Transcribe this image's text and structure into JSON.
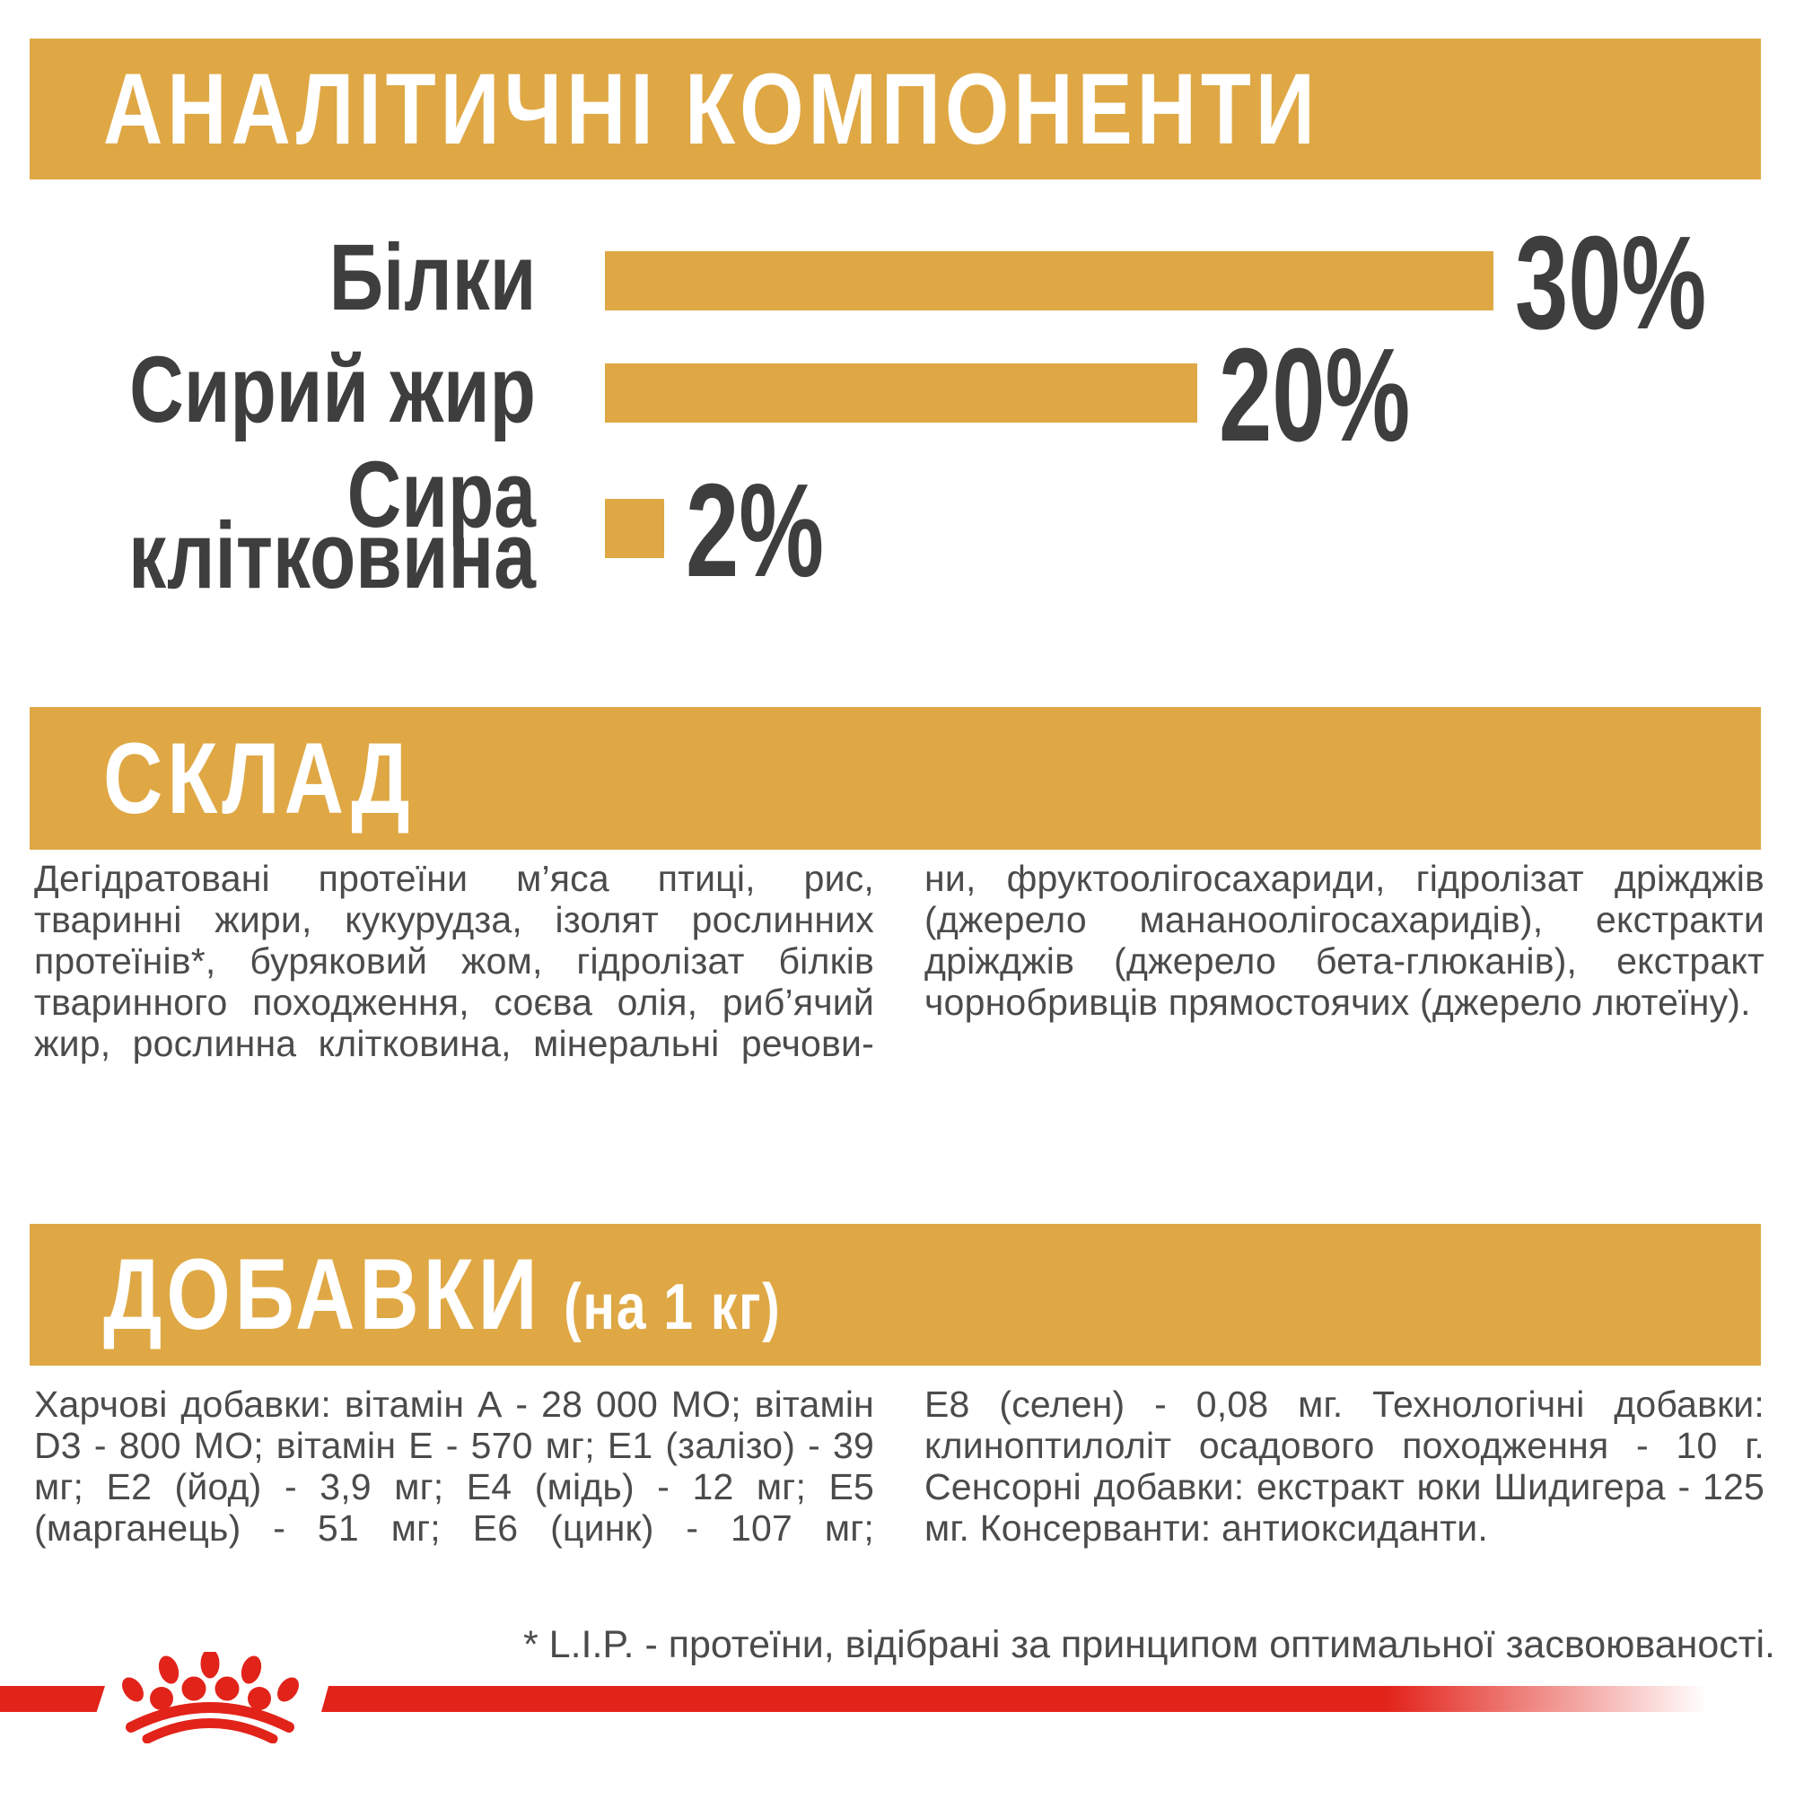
{
  "page": {
    "colors": {
      "gold": "#DFA845",
      "red": "#E2231A",
      "dark": "#3E3E3E",
      "body": "#4B4B4B",
      "white": "#FFFFFF",
      "bg": "#FFFFFF"
    }
  },
  "icons": {
    "logo": "royal-canin-crown-icon"
  },
  "analytical": {
    "title": "АНАЛІТИЧНІ КОМПОНЕНТИ"
  },
  "chart_data": {
    "type": "bar",
    "orientation": "horizontal",
    "title": "АНАЛІТИЧНІ КОМПОНЕНТИ",
    "categories": [
      "Білки",
      "Сирий жир",
      "Сира клітковина"
    ],
    "values": [
      30,
      20,
      2
    ],
    "unit": "%",
    "value_labels": [
      "30%",
      "20%",
      "2%"
    ],
    "xlim": [
      0,
      30
    ],
    "bar_color": "#DFA845",
    "label_color": "#3E3E3E",
    "grid": false,
    "legend": false
  },
  "composition": {
    "title": "СКЛАД",
    "col_left": "Дегідратовані протеїни м’яса птиці, рис, тваринні жири, кукурудза, ізолят рослинних протеїнів*, буряковий жом, гідролізат білків тваринного походження, соєва олія, риб’ячий жир, рослинна клітковина, мінеральні речови-",
    "col_right": "ни, фруктоолігосахариди, гідролізат дріжджів (джерело мананоолігосахаридів), екстракти дріжджів (джерело бета-глюканів), екстракт чорнобривців прямостоячих (джерело лютеїну)."
  },
  "additives": {
    "title": "ДОБАВКИ",
    "title_suffix": "(на 1 кг)",
    "col_left": "Харчові добавки: вітамін А - 28 000 МО; вітамін D3 - 800 МО; вітамін Е - 570 мг; Е1 (залізо) - 39 мг; Е2 (йод) - 3,9 мг; Е4 (мідь) - 12 мг; Е5 (марганець) - 51 мг; Е6 (цинк) - 107 мг;",
    "col_right": "Е8 (селен) - 0,08 мг. Технологічні добавки: клиноптилоліт осадового походження - 10 г. Сенсорні добавки: екстракт юки Шидигера - 125 мг. Консерванти: антиоксиданти."
  },
  "footnote": "* L.I.P. - протеїни, відібрані за принципом оптимальної засвоюваності."
}
